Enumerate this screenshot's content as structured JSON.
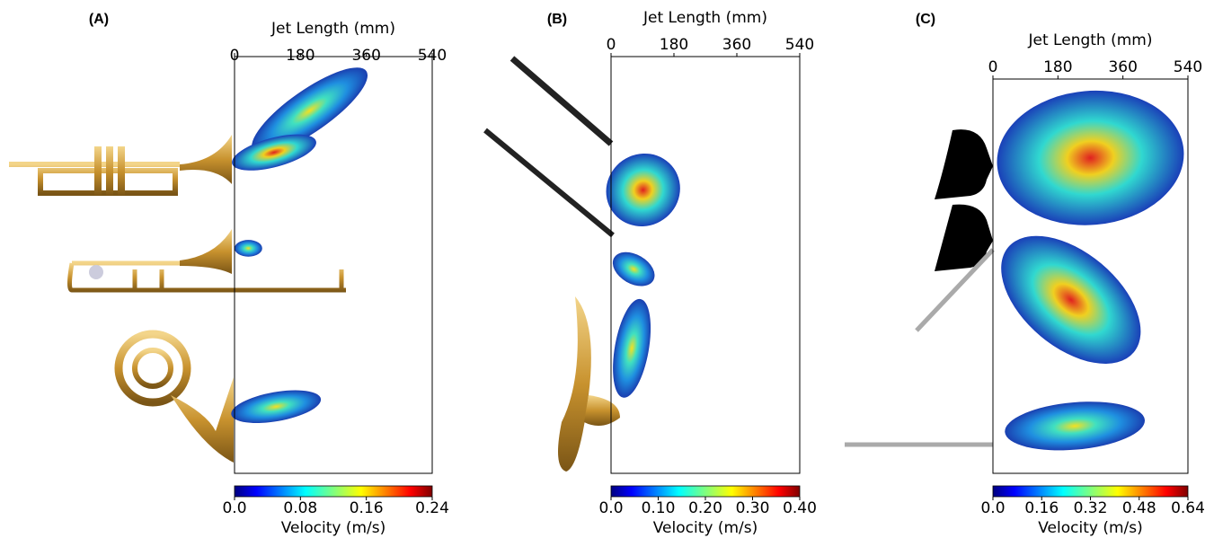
{
  "chart_data": [
    {
      "type": "heatmap",
      "panel_label": "(A)",
      "xlabel": "Jet Length (mm)",
      "xlim": [
        0,
        540
      ],
      "xticks": [
        0,
        180,
        360,
        540
      ],
      "colorbar": {
        "label": "Velocity (m/s)",
        "lim": [
          0,
          0.24
        ],
        "ticks": [
          {
            "value": 0,
            "label": "0.0"
          },
          0.08,
          0.16,
          0.24
        ]
      }
    },
    {
      "type": "heatmap",
      "panel_label": "(B)",
      "xlabel": "Jet Length (mm)",
      "xlim": [
        0,
        540
      ],
      "xticks": [
        0,
        180,
        360,
        540
      ],
      "colorbar": {
        "label": "Velocity (m/s)",
        "lim": [
          0,
          0.4
        ],
        "ticks": [
          {
            "value": 0,
            "label": "0.0"
          },
          {
            "value": 0.1,
            "label": "0.10"
          },
          {
            "value": 0.2,
            "label": "0.20"
          },
          {
            "value": 0.3,
            "label": "0.30"
          },
          {
            "value": 0.4,
            "label": "0.40"
          }
        ]
      }
    },
    {
      "type": "heatmap",
      "panel_label": "(C)",
      "xlabel": "Jet Length (mm)",
      "xlim": [
        0,
        540
      ],
      "xticks": [
        0,
        180,
        360,
        540
      ],
      "colorbar": {
        "label": "Velocity (m/s)",
        "lim": [
          0,
          0.64
        ],
        "ticks": [
          {
            "value": 0,
            "label": "0.0"
          },
          0.16,
          0.32,
          0.48,
          0.64
        ]
      }
    }
  ]
}
